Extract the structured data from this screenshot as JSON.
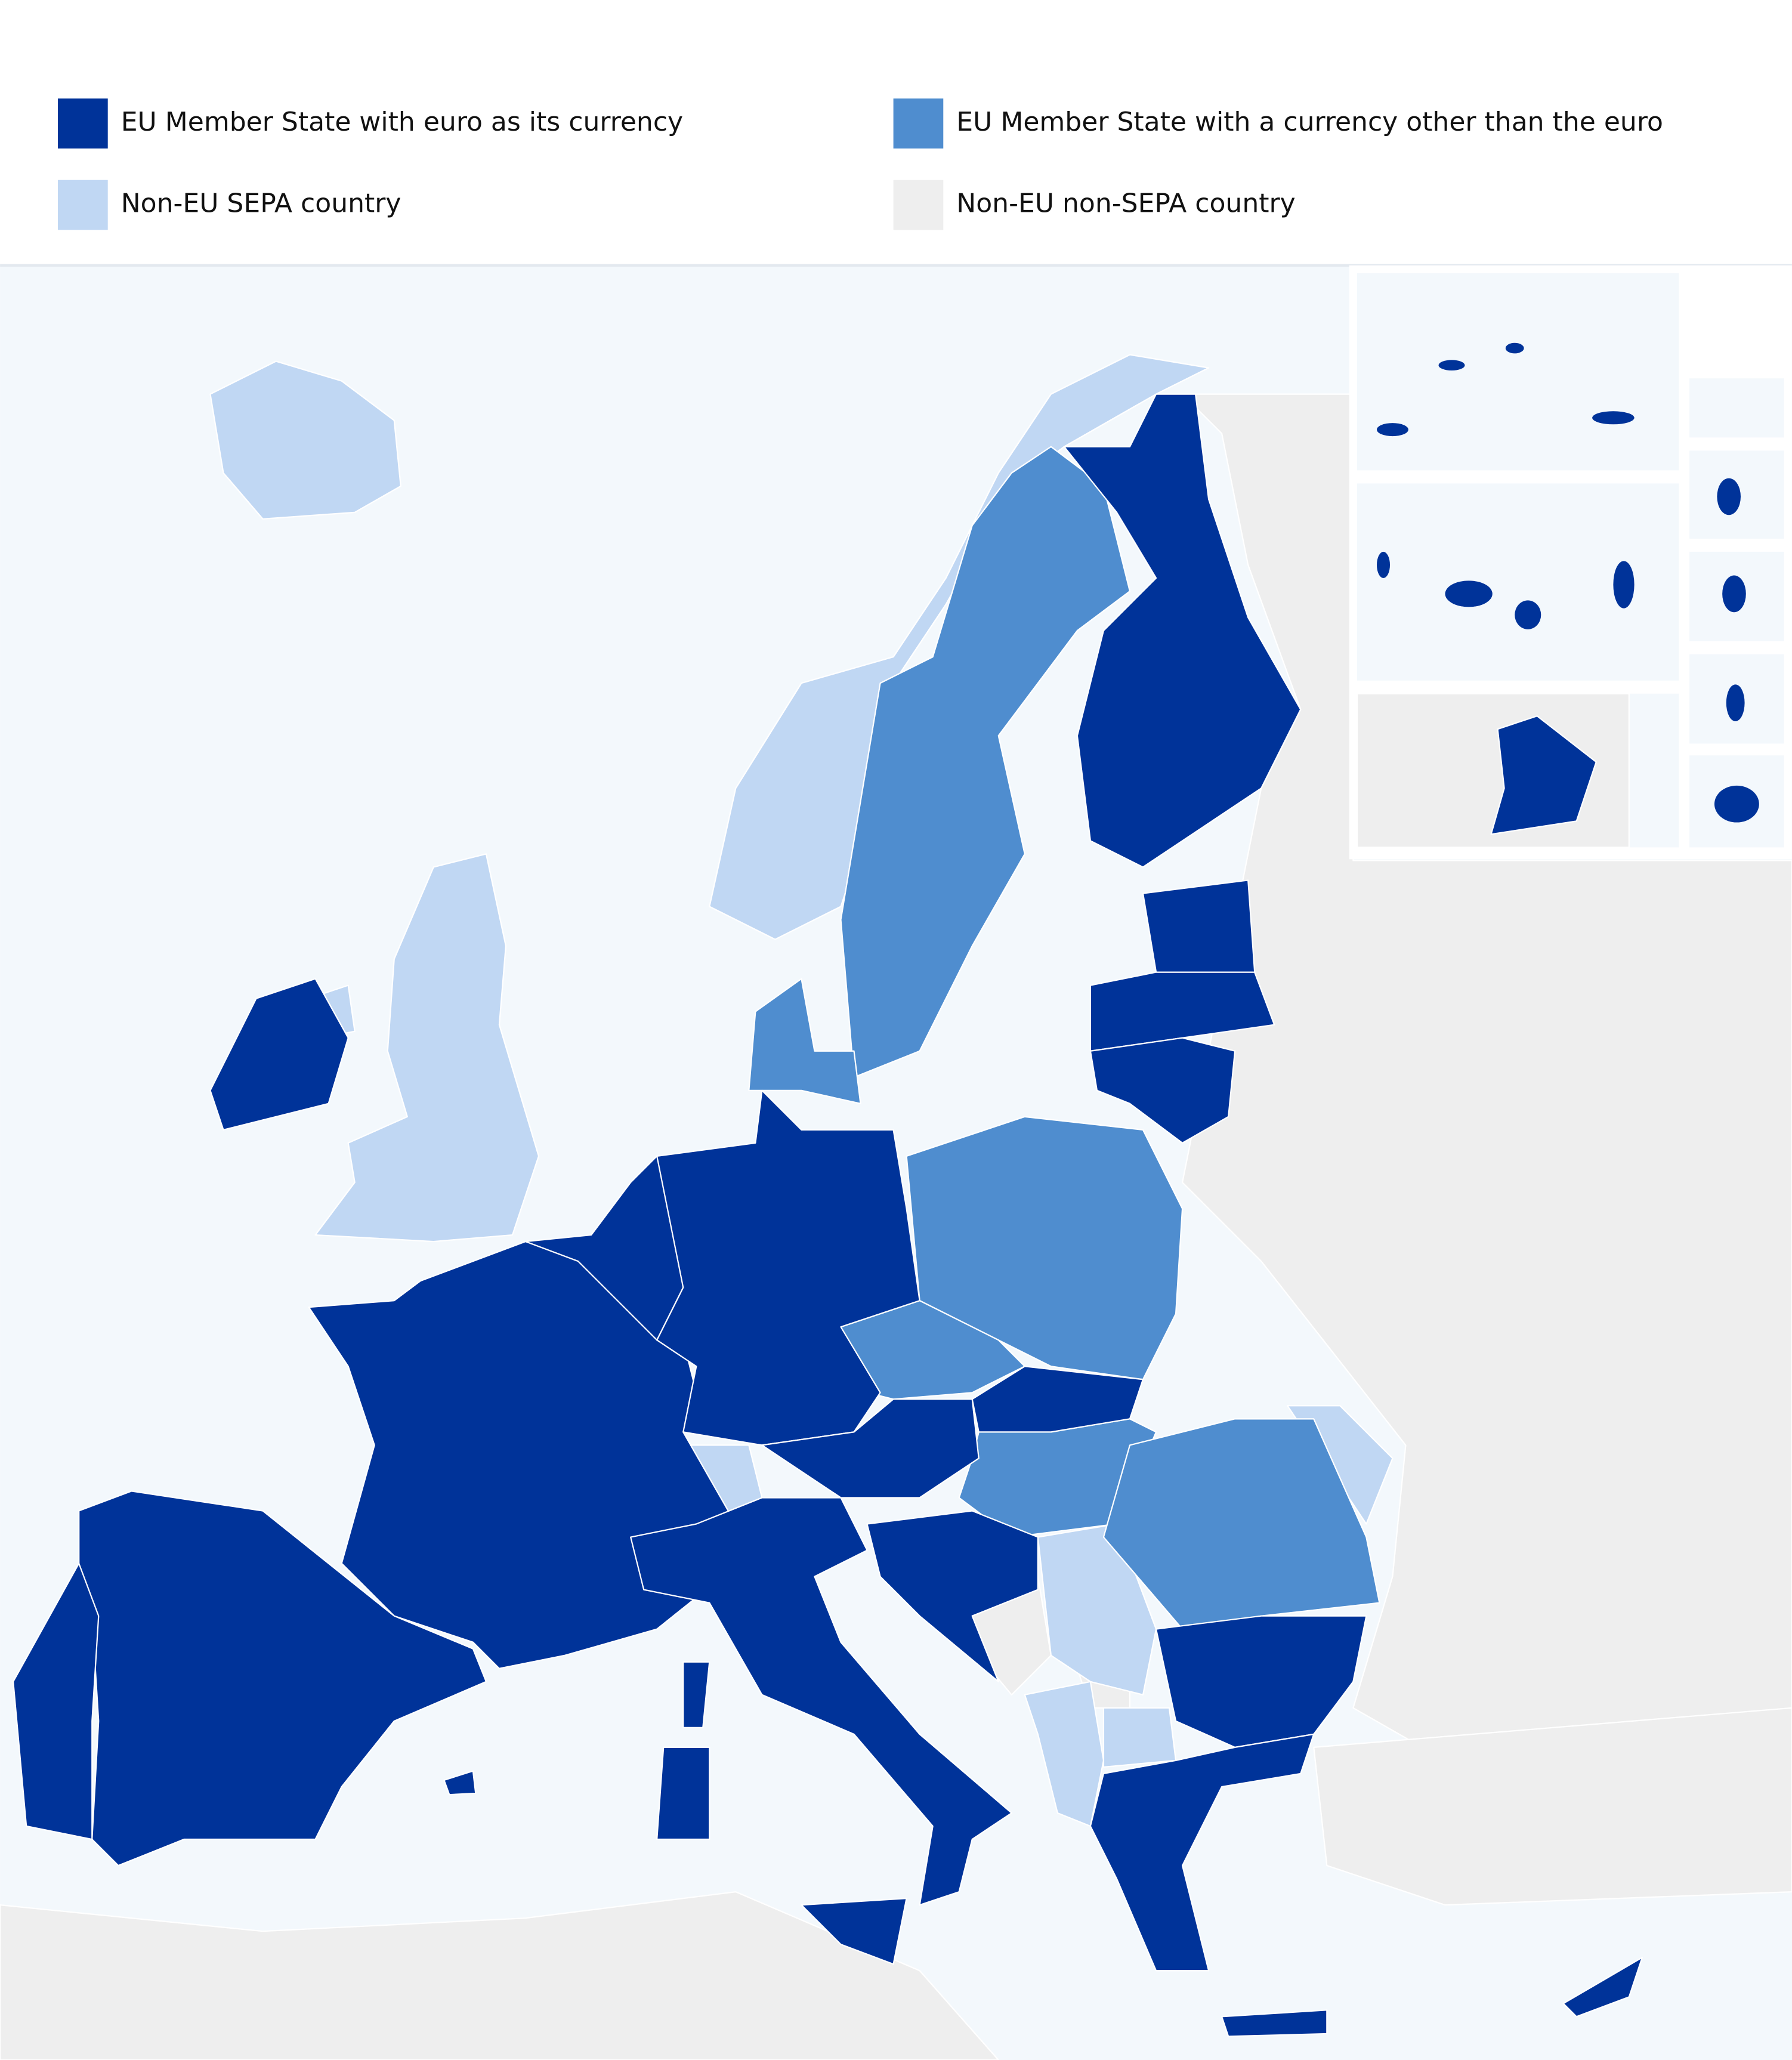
{
  "legend": [
    {
      "label": "EU Member State with euro as its currency",
      "color": "#003399"
    },
    {
      "label": "EU Member State with a currency other than the euro",
      "color": "#4f8dcf"
    },
    {
      "label": "Non-EU SEPA country",
      "color": "#c0d7f3"
    },
    {
      "label": "Non-EU non-SEPA country",
      "color": "#eeeeee"
    }
  ]
}
